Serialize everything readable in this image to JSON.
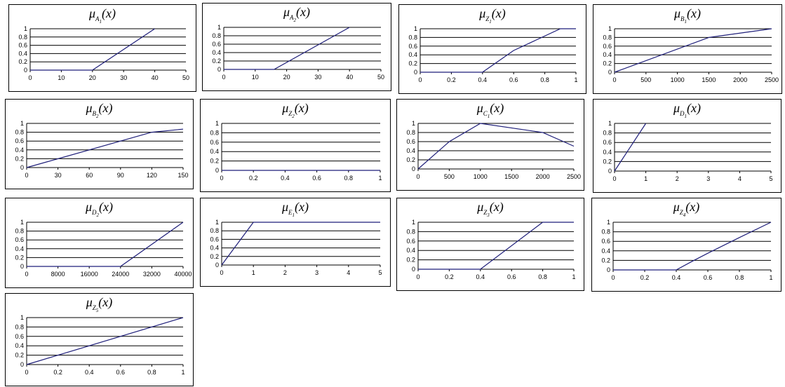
{
  "theme": {
    "line_color": "#1f1f7a",
    "grid_color": "#000000"
  },
  "chart_data": [
    {
      "type": "line",
      "title": {
        "symbol": "μ",
        "base": "A",
        "sub": "1",
        "arg": "(x)"
      },
      "xlim": [
        0,
        50
      ],
      "ylim": [
        0,
        1
      ],
      "xticks": [
        "0",
        "10",
        "20",
        "30",
        "40",
        "50"
      ],
      "yticks": [
        "0",
        "0.2",
        "0.4",
        "0.6",
        "0.8",
        "1"
      ],
      "grid": true,
      "series": [
        {
          "x": [
            0,
            20,
            40
          ],
          "y": [
            0,
            0,
            1
          ]
        }
      ]
    },
    {
      "type": "line",
      "title": {
        "symbol": "μ",
        "base": "A",
        "sub": "2",
        "arg": "(x)"
      },
      "xlim": [
        0,
        50
      ],
      "ylim": [
        0,
        1
      ],
      "xticks": [
        "0",
        "10",
        "20",
        "30",
        "40",
        "50"
      ],
      "yticks": [
        "0",
        "0.2",
        "0.4",
        "0.6",
        "0.8",
        "1"
      ],
      "grid": true,
      "series": [
        {
          "x": [
            0,
            16,
            40
          ],
          "y": [
            0,
            0,
            1
          ]
        }
      ]
    },
    {
      "type": "line",
      "title": {
        "symbol": "μ",
        "base": "Z",
        "sub": "1",
        "arg": "(x)"
      },
      "xlim": [
        0,
        1
      ],
      "ylim": [
        0,
        1
      ],
      "xticks": [
        "0",
        "0.2",
        "0.4",
        "0.6",
        "0.8",
        "1"
      ],
      "yticks": [
        "0",
        "0.2",
        "0.4",
        "0.6",
        "0.8",
        "1"
      ],
      "grid": true,
      "series": [
        {
          "x": [
            0,
            0.4,
            0.6,
            0.9,
            1
          ],
          "y": [
            0,
            0,
            0.5,
            1,
            1
          ]
        }
      ]
    },
    {
      "type": "line",
      "title": {
        "symbol": "μ",
        "base": "B",
        "sub": "1",
        "arg": "(x)"
      },
      "xlim": [
        0,
        2500
      ],
      "ylim": [
        0,
        1
      ],
      "xticks": [
        "0",
        "500",
        "1000",
        "1500",
        "2000",
        "2500"
      ],
      "yticks": [
        "0",
        "0.2",
        "0.4",
        "0.6",
        "0.8",
        "1"
      ],
      "grid": true,
      "series": [
        {
          "x": [
            0,
            1500,
            2500
          ],
          "y": [
            0,
            0.8,
            1
          ]
        }
      ]
    },
    {
      "type": "line",
      "title": {
        "symbol": "μ",
        "base": "B",
        "sub": "2",
        "arg": "(x)"
      },
      "xlim": [
        0,
        150
      ],
      "ylim": [
        0,
        1
      ],
      "xticks": [
        "0",
        "30",
        "60",
        "90",
        "120",
        "150"
      ],
      "yticks": [
        "0",
        "0.2",
        "0.4",
        "0.6",
        "0.8",
        "1"
      ],
      "grid": true,
      "series": [
        {
          "x": [
            0,
            120,
            150
          ],
          "y": [
            0,
            0.8,
            0.87
          ]
        }
      ]
    },
    {
      "type": "line",
      "title": {
        "symbol": "μ",
        "base": "Z",
        "sub": "2",
        "arg": "(x)"
      },
      "xlim": [
        0,
        1
      ],
      "ylim": [
        0,
        1
      ],
      "xticks": [
        "0",
        "0.2",
        "0.4",
        "0.6",
        "0.8",
        "1"
      ],
      "yticks": [
        "0",
        "0.2",
        "0.4",
        "0.6",
        "0.8",
        "1"
      ],
      "grid": true,
      "series": [
        {
          "x": [
            0,
            1
          ],
          "y": [
            0,
            0
          ]
        }
      ]
    },
    {
      "type": "line",
      "title": {
        "symbol": "μ",
        "base": "C",
        "sub": "1",
        "arg": "(x)"
      },
      "xlim": [
        0,
        2500
      ],
      "ylim": [
        0,
        1
      ],
      "xticks": [
        "0",
        "500",
        "1000",
        "1500",
        "2000",
        "2500"
      ],
      "yticks": [
        "0",
        "0.2",
        "0.4",
        "0.6",
        "0.8",
        "1"
      ],
      "grid": true,
      "series": [
        {
          "x": [
            0,
            500,
            1000,
            2000,
            2500
          ],
          "y": [
            0,
            0.6,
            1,
            0.8,
            0.5
          ]
        }
      ]
    },
    {
      "type": "line",
      "title": {
        "symbol": "μ",
        "base": "D",
        "sub": "1",
        "arg": "(x)"
      },
      "xlim": [
        0,
        5
      ],
      "ylim": [
        0,
        1
      ],
      "xticks": [
        "0",
        "1",
        "2",
        "3",
        "4",
        "5"
      ],
      "yticks": [
        "0",
        "0.2",
        "0.4",
        "0.6",
        "0.8",
        "1"
      ],
      "grid": true,
      "series": [
        {
          "x": [
            0,
            1
          ],
          "y": [
            0,
            1
          ]
        }
      ]
    },
    {
      "type": "line",
      "title": {
        "symbol": "μ",
        "base": "D",
        "sub": "2",
        "arg": "(x)"
      },
      "xlim": [
        0,
        40000
      ],
      "ylim": [
        0,
        1
      ],
      "xticks": [
        "0",
        "8000",
        "16000",
        "24000",
        "32000",
        "40000"
      ],
      "yticks": [
        "0",
        "0.2",
        "0.4",
        "0.6",
        "0.8",
        "1"
      ],
      "grid": true,
      "series": [
        {
          "x": [
            0,
            24000,
            40000
          ],
          "y": [
            0,
            0,
            1
          ]
        }
      ]
    },
    {
      "type": "line",
      "title": {
        "symbol": "μ",
        "base": "E",
        "sub": "1",
        "arg": "(x)"
      },
      "xlim": [
        0,
        5
      ],
      "ylim": [
        0,
        1
      ],
      "xticks": [
        "0",
        "1",
        "2",
        "3",
        "4",
        "5"
      ],
      "yticks": [
        "0",
        "0.2",
        "0.4",
        "0.6",
        "0.8",
        "1"
      ],
      "grid": true,
      "series": [
        {
          "x": [
            0,
            1,
            5
          ],
          "y": [
            0,
            1,
            1
          ]
        }
      ]
    },
    {
      "type": "line",
      "title": {
        "symbol": "μ",
        "base": "Z",
        "sub": "3",
        "arg": "(x)"
      },
      "xlim": [
        0,
        1
      ],
      "ylim": [
        0,
        1
      ],
      "xticks": [
        "0",
        "0.2",
        "0.4",
        "0.6",
        "0.8",
        "1"
      ],
      "yticks": [
        "0",
        "0.2",
        "0.4",
        "0.6",
        "0.8",
        "1"
      ],
      "grid": true,
      "series": [
        {
          "x": [
            0,
            0.4,
            0.8,
            1
          ],
          "y": [
            0,
            0,
            1,
            1
          ]
        }
      ]
    },
    {
      "type": "line",
      "title": {
        "symbol": "μ",
        "base": "Z",
        "sub": "4",
        "arg": "(x)"
      },
      "xlim": [
        0,
        1
      ],
      "ylim": [
        0,
        1
      ],
      "xticks": [
        "0",
        "0.2",
        "0.4",
        "0.6",
        "0.8",
        "1"
      ],
      "yticks": [
        "0",
        "0.2",
        "0.4",
        "0.6",
        "0.8",
        "1"
      ],
      "grid": true,
      "series": [
        {
          "x": [
            0,
            0.4,
            0.5,
            0.6,
            0.8,
            1
          ],
          "y": [
            0,
            0,
            0.18,
            0.35,
            0.68,
            1
          ]
        }
      ]
    },
    {
      "type": "line",
      "title": {
        "symbol": "μ",
        "base": "Z",
        "sub": "5",
        "arg": "(x)"
      },
      "xlim": [
        0,
        1
      ],
      "ylim": [
        0,
        1
      ],
      "xticks": [
        "0",
        "0.2",
        "0.4",
        "0.6",
        "0.8",
        "1"
      ],
      "yticks": [
        "0",
        "0.2",
        "0.4",
        "0.6",
        "0.8",
        "1"
      ],
      "grid": true,
      "series": [
        {
          "x": [
            0,
            1
          ],
          "y": [
            0,
            1
          ]
        }
      ]
    }
  ]
}
